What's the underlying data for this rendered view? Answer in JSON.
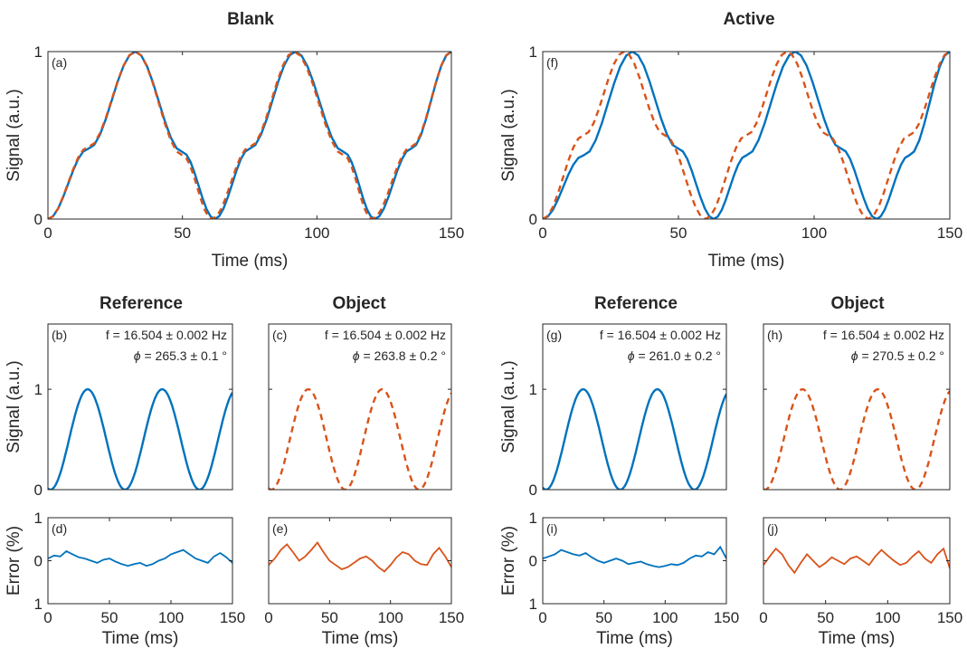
{
  "colors": {
    "solid": "#0072BD",
    "dashed": "#D95319",
    "axis": "#262626"
  },
  "groups": [
    {
      "title": "Blank",
      "top_panel": "a",
      "sub_titles": [
        "Reference",
        "Object"
      ]
    },
    {
      "title": "Active",
      "top_panel": "f",
      "sub_titles": [
        "Reference",
        "Object"
      ]
    }
  ],
  "chart_data": [
    {
      "id": "a",
      "type": "line",
      "group": "Blank",
      "panel_label": "(a)",
      "xlabel": "Time (ms)",
      "ylabel": "Signal (a.u.)",
      "xlim": [
        0,
        150
      ],
      "ylim": [
        0,
        1
      ],
      "xticks": [
        "0",
        "50",
        "100",
        "150"
      ],
      "yticks": [
        "0",
        "1"
      ],
      "series": [
        {
          "style": "solid",
          "color": "#0072BD",
          "x": [
            0,
            15,
            32.5,
            50,
            62,
            75,
            92,
            110,
            121.5,
            135,
            150
          ],
          "y": [
            0,
            0.42,
            1,
            0.4,
            0,
            0.42,
            1,
            0.4,
            0,
            0.42,
            1
          ]
        },
        {
          "style": "dashed",
          "color": "#D95319",
          "x": [
            0,
            15,
            32.5,
            50,
            61,
            75,
            91.5,
            110,
            120.5,
            135,
            150
          ],
          "y": [
            0,
            0.43,
            1,
            0.38,
            0,
            0.43,
            1,
            0.38,
            0,
            0.43,
            1
          ]
        }
      ]
    },
    {
      "id": "f",
      "type": "line",
      "group": "Active",
      "panel_label": "(f)",
      "xlabel": "Time (ms)",
      "ylabel": "Signal (a.u.)",
      "xlim": [
        0,
        150
      ],
      "ylim": [
        0,
        1
      ],
      "xticks": [
        "0",
        "50",
        "100",
        "150"
      ],
      "yticks": [
        "0",
        "1"
      ],
      "series": [
        {
          "style": "solid",
          "color": "#0072BD",
          "x": [
            0,
            15,
            33,
            50,
            63,
            75,
            93,
            110,
            123,
            135,
            150
          ],
          "y": [
            0,
            0.38,
            1,
            0.42,
            0,
            0.38,
            1,
            0.42,
            0,
            0.38,
            1
          ]
        },
        {
          "style": "dashed",
          "color": "#D95319",
          "x": [
            0,
            15,
            30,
            45,
            60,
            75,
            90,
            105,
            120,
            135,
            150
          ],
          "y": [
            0,
            0.5,
            1,
            0.5,
            0,
            0.5,
            1,
            0.5,
            0,
            0.5,
            1
          ]
        }
      ]
    },
    {
      "id": "b",
      "type": "line",
      "group": "Blank",
      "subtitle": "Reference",
      "panel_label": "(b)",
      "annotation_f": "f = 16.504 ± 0.002 Hz",
      "annotation_phi": "= 265.3 ± 0.1 °",
      "phi_symbol": "ϕ",
      "ylabel": "Signal (a.u.)",
      "xlim": [
        0,
        150
      ],
      "ylim": [
        0,
        1.65
      ],
      "yticks": [
        "0",
        "1"
      ],
      "series": [
        {
          "style": "solid",
          "color": "#0072BD",
          "phase_deg": 265.3,
          "frequency_hz": 16.504
        }
      ]
    },
    {
      "id": "c",
      "type": "line",
      "group": "Blank",
      "subtitle": "Object",
      "panel_label": "(c)",
      "annotation_f": "f = 16.504 ± 0.002 Hz",
      "annotation_phi": "= 263.8 ± 0.2 °",
      "phi_symbol": "ϕ",
      "xlim": [
        0,
        150
      ],
      "ylim": [
        0,
        1.65
      ],
      "series": [
        {
          "style": "dashed",
          "color": "#D95319",
          "phase_deg": 263.8,
          "frequency_hz": 16.504
        }
      ]
    },
    {
      "id": "g",
      "type": "line",
      "group": "Active",
      "subtitle": "Reference",
      "panel_label": "(g)",
      "annotation_f": "f = 16.504 ± 0.002 Hz",
      "annotation_phi": "= 261.0 ± 0.2 °",
      "phi_symbol": "ϕ",
      "ylabel": "Signal (a.u.)",
      "xlim": [
        0,
        150
      ],
      "ylim": [
        0,
        1.65
      ],
      "yticks": [
        "0",
        "1"
      ],
      "series": [
        {
          "style": "solid",
          "color": "#0072BD",
          "phase_deg": 261.0,
          "frequency_hz": 16.504
        }
      ]
    },
    {
      "id": "h",
      "type": "line",
      "group": "Active",
      "subtitle": "Object",
      "panel_label": "(h)",
      "annotation_f": "f = 16.504 ± 0.002 Hz",
      "annotation_phi": "= 270.5 ± 0.2 °",
      "phi_symbol": "ϕ",
      "xlim": [
        0,
        150
      ],
      "ylim": [
        0,
        1.65
      ],
      "series": [
        {
          "style": "dashed",
          "color": "#D95319",
          "phase_deg": 270.5,
          "frequency_hz": 16.504
        }
      ]
    },
    {
      "id": "d",
      "type": "line",
      "group": "Blank",
      "panel_label": "(d)",
      "ylabel": "Error (%)",
      "xlabel": "Time (ms)",
      "xlim": [
        0,
        150
      ],
      "ylim": [
        -1,
        1
      ],
      "xticks": [
        "0",
        "50",
        "100",
        "150"
      ],
      "yticks": [
        "1",
        "0",
        "1"
      ],
      "series": [
        {
          "style": "solid",
          "color": "#0072BD",
          "x": [
            0,
            5,
            10,
            15,
            20,
            25,
            30,
            35,
            40,
            45,
            50,
            55,
            60,
            65,
            70,
            75,
            80,
            85,
            90,
            95,
            100,
            105,
            110,
            115,
            120,
            125,
            130,
            135,
            140,
            145,
            150
          ],
          "y": [
            0.05,
            0.12,
            0.1,
            0.22,
            0.15,
            0.08,
            0.05,
            0.0,
            -0.05,
            0.02,
            0.05,
            -0.02,
            -0.08,
            -0.12,
            -0.08,
            -0.05,
            -0.12,
            -0.08,
            0.0,
            0.05,
            0.15,
            0.2,
            0.25,
            0.15,
            0.05,
            0.0,
            -0.05,
            0.1,
            0.18,
            0.08,
            -0.05
          ]
        }
      ]
    },
    {
      "id": "e",
      "type": "line",
      "group": "Blank",
      "panel_label": "(e)",
      "xlabel": "Time (ms)",
      "xlim": [
        0,
        150
      ],
      "ylim": [
        -1,
        1
      ],
      "xticks": [
        "0",
        "50",
        "100",
        "150"
      ],
      "series": [
        {
          "style": "solid",
          "color": "#D95319",
          "x": [
            0,
            5,
            10,
            15,
            20,
            25,
            30,
            35,
            40,
            45,
            50,
            55,
            60,
            65,
            70,
            75,
            80,
            85,
            90,
            95,
            100,
            105,
            110,
            115,
            120,
            125,
            130,
            135,
            140,
            145,
            150
          ],
          "y": [
            -0.1,
            0.05,
            0.25,
            0.38,
            0.2,
            0.0,
            0.1,
            0.25,
            0.42,
            0.2,
            0.0,
            -0.1,
            -0.2,
            -0.15,
            -0.05,
            0.05,
            0.1,
            0.0,
            -0.15,
            -0.25,
            -0.1,
            0.08,
            0.2,
            0.15,
            0.0,
            -0.08,
            -0.1,
            0.15,
            0.3,
            0.1,
            -0.15
          ]
        }
      ]
    },
    {
      "id": "i",
      "type": "line",
      "group": "Active",
      "panel_label": "(i)",
      "ylabel": "Error (%)",
      "xlabel": "Time (ms)",
      "xlim": [
        0,
        150
      ],
      "ylim": [
        -1,
        1
      ],
      "xticks": [
        "0",
        "50",
        "100",
        "150"
      ],
      "yticks": [
        "1",
        "0",
        "1"
      ],
      "series": [
        {
          "style": "solid",
          "color": "#0072BD",
          "x": [
            0,
            5,
            10,
            15,
            20,
            25,
            30,
            35,
            40,
            45,
            50,
            55,
            60,
            65,
            70,
            75,
            80,
            85,
            90,
            95,
            100,
            105,
            110,
            115,
            120,
            125,
            130,
            135,
            140,
            145,
            150
          ],
          "y": [
            0.05,
            0.1,
            0.15,
            0.25,
            0.2,
            0.15,
            0.12,
            0.18,
            0.08,
            0.0,
            -0.05,
            0.0,
            0.05,
            0.0,
            -0.08,
            -0.05,
            -0.02,
            -0.08,
            -0.12,
            -0.15,
            -0.12,
            -0.08,
            -0.1,
            -0.05,
            0.05,
            0.12,
            0.1,
            0.2,
            0.15,
            0.32,
            0.05
          ]
        }
      ]
    },
    {
      "id": "j",
      "type": "line",
      "group": "Active",
      "panel_label": "(j)",
      "xlabel": "Time (ms)",
      "xlim": [
        0,
        150
      ],
      "ylim": [
        -1,
        1
      ],
      "xticks": [
        "0",
        "50",
        "100",
        "150"
      ],
      "series": [
        {
          "style": "solid",
          "color": "#D95319",
          "x": [
            0,
            5,
            10,
            15,
            20,
            25,
            30,
            35,
            40,
            45,
            50,
            55,
            60,
            65,
            70,
            75,
            80,
            85,
            90,
            95,
            100,
            105,
            110,
            115,
            120,
            125,
            130,
            135,
            140,
            145,
            150
          ],
          "y": [
            -0.1,
            0.1,
            0.28,
            0.15,
            -0.1,
            -0.28,
            -0.05,
            0.15,
            0.0,
            -0.15,
            -0.05,
            0.08,
            0.0,
            -0.08,
            0.05,
            0.1,
            0.0,
            -0.1,
            0.1,
            0.25,
            0.12,
            0.0,
            -0.1,
            -0.05,
            0.1,
            0.22,
            0.05,
            -0.05,
            0.15,
            0.28,
            -0.18
          ]
        }
      ]
    }
  ]
}
